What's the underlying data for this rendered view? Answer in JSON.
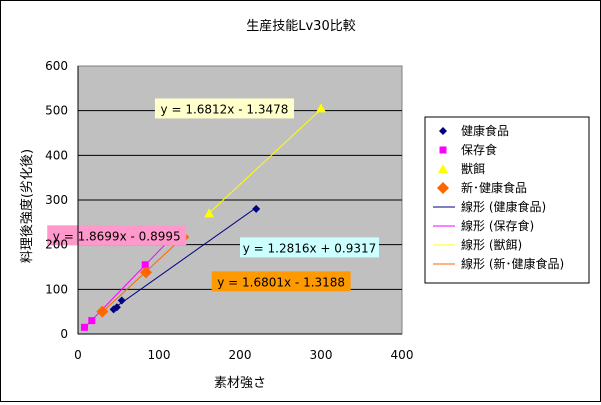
{
  "chart_data": {
    "type": "scatter",
    "title": "生産技能Lv30比較",
    "xlabel": "素材強さ",
    "ylabel": "料理後強度(劣化後)",
    "xlim": [
      0,
      400
    ],
    "ylim": [
      0,
      600
    ],
    "x_ticks": [
      "0",
      "100",
      "200",
      "300",
      "400"
    ],
    "y_ticks": [
      "0",
      "100",
      "200",
      "300",
      "400",
      "500",
      "600"
    ],
    "grid": true,
    "legend_position": "right",
    "series": [
      {
        "name": "健康食品",
        "color": "#000080",
        "marker": "diamond",
        "points": [
          [
            44,
            55
          ],
          [
            48,
            60
          ],
          [
            54,
            75
          ],
          [
            220,
            280
          ]
        ]
      },
      {
        "name": "保存食",
        "color": "#ff00ff",
        "marker": "square",
        "points": [
          [
            8,
            15
          ],
          [
            17,
            30
          ],
          [
            83,
            155
          ],
          [
            117,
            220
          ]
        ]
      },
      {
        "name": "獣餌",
        "color": "#ffff00",
        "marker": "triangle",
        "points": [
          [
            162,
            270
          ],
          [
            300,
            505
          ]
        ]
      },
      {
        "name": "新･健康食品",
        "color": "#ff6600",
        "marker": "diamond-large",
        "points": [
          [
            30,
            50
          ],
          [
            84,
            138
          ],
          [
            130,
            217
          ]
        ]
      }
    ],
    "trendlines": [
      {
        "name": "線形 (健康食品)",
        "series": 0,
        "slope": 1.2816,
        "intercept": 0.9317,
        "x_range": [
          44,
          220
        ],
        "color": "#000080"
      },
      {
        "name": "線形 (保存食)",
        "series": 1,
        "slope": 1.8699,
        "intercept": -0.8995,
        "x_range": [
          8,
          117
        ],
        "color": "#ff00ff"
      },
      {
        "name": "線形 (獣餌)",
        "series": 2,
        "slope": 1.6812,
        "intercept": -1.3478,
        "x_range": [
          162,
          300
        ],
        "color": "#ffff00"
      },
      {
        "name": "線形 (新･健康食品)",
        "series": 3,
        "slope": 1.6801,
        "intercept": -1.3188,
        "x_range": [
          30,
          130
        ],
        "color": "#ff6600"
      }
    ],
    "annotations": [
      {
        "text": "y = 1.6812x - 1.3478",
        "bg": "#ffffcc",
        "anchor": [
          95,
          496
        ]
      },
      {
        "text": "y = 1.8699x - 0.8995",
        "bg": "#ff99cc",
        "anchor": [
          -38,
          212
        ]
      },
      {
        "text": "y = 1.2816x + 0.9317",
        "bg": "#ccffff",
        "anchor": [
          200,
          185
        ]
      },
      {
        "text": "y = 1.6801x - 1.3188",
        "bg": "#ff9900",
        "anchor": [
          165,
          109
        ]
      }
    ]
  }
}
